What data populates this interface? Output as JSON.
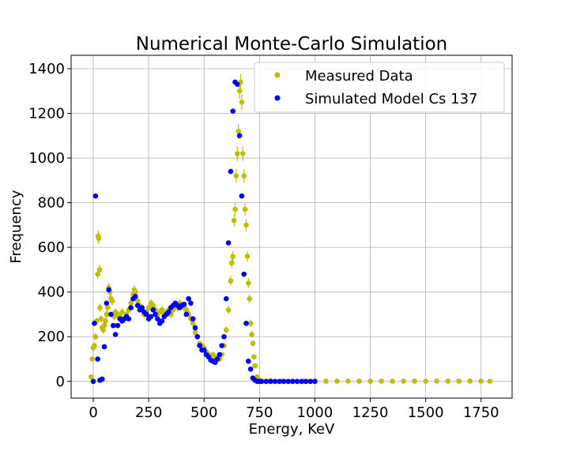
{
  "chart_data": {
    "type": "scatter",
    "title": "Numerical Monte-Carlo Simulation",
    "xlabel": "Energy, KeV",
    "ylabel": "Frequency",
    "xlim": [
      -100,
      1890
    ],
    "ylim": [
      -75,
      1460
    ],
    "xticks": [
      0,
      250,
      500,
      750,
      1000,
      1250,
      1500,
      1750
    ],
    "yticks": [
      0,
      200,
      400,
      600,
      800,
      1000,
      1200,
      1400
    ],
    "grid": true,
    "legend_position": "top-right",
    "series": [
      {
        "name": "Measured Data",
        "color": "#bfbf00",
        "error_bars": true,
        "points": [
          [
            -10,
            20
          ],
          [
            -5,
            100
          ],
          [
            0,
            150
          ],
          [
            5,
            160
          ],
          [
            10,
            200
          ],
          [
            15,
            270
          ],
          [
            20,
            480
          ],
          [
            22,
            650
          ],
          [
            25,
            640
          ],
          [
            28,
            500
          ],
          [
            30,
            330
          ],
          [
            35,
            280
          ],
          [
            40,
            240
          ],
          [
            45,
            230
          ],
          [
            50,
            250
          ],
          [
            55,
            270
          ],
          [
            60,
            300
          ],
          [
            65,
            330
          ],
          [
            70,
            420
          ],
          [
            75,
            400
          ],
          [
            80,
            370
          ],
          [
            85,
            360
          ],
          [
            90,
            300
          ],
          [
            95,
            290
          ],
          [
            100,
            310
          ],
          [
            110,
            300
          ],
          [
            120,
            290
          ],
          [
            130,
            310
          ],
          [
            140,
            280
          ],
          [
            150,
            300
          ],
          [
            160,
            320
          ],
          [
            170,
            350
          ],
          [
            180,
            390
          ],
          [
            185,
            410
          ],
          [
            190,
            400
          ],
          [
            200,
            360
          ],
          [
            210,
            340
          ],
          [
            220,
            320
          ],
          [
            230,
            300
          ],
          [
            240,
            310
          ],
          [
            250,
            330
          ],
          [
            260,
            350
          ],
          [
            270,
            340
          ],
          [
            280,
            320
          ],
          [
            290,
            300
          ],
          [
            300,
            310
          ],
          [
            310,
            320
          ],
          [
            320,
            300
          ],
          [
            330,
            310
          ],
          [
            340,
            320
          ],
          [
            350,
            300
          ],
          [
            360,
            320
          ],
          [
            370,
            340
          ],
          [
            380,
            330
          ],
          [
            390,
            350
          ],
          [
            400,
            340
          ],
          [
            410,
            330
          ],
          [
            420,
            320
          ],
          [
            430,
            300
          ],
          [
            440,
            280
          ],
          [
            450,
            260
          ],
          [
            460,
            220
          ],
          [
            470,
            200
          ],
          [
            480,
            170
          ],
          [
            490,
            160
          ],
          [
            500,
            150
          ],
          [
            510,
            130
          ],
          [
            520,
            120
          ],
          [
            530,
            110
          ],
          [
            540,
            120
          ],
          [
            550,
            100
          ],
          [
            560,
            110
          ],
          [
            570,
            100
          ],
          [
            580,
            120
          ],
          [
            590,
            160
          ],
          [
            600,
            230
          ],
          [
            610,
            320
          ],
          [
            620,
            450
          ],
          [
            625,
            530
          ],
          [
            630,
            560
          ],
          [
            635,
            720
          ],
          [
            640,
            770
          ],
          [
            645,
            920
          ],
          [
            650,
            1020
          ],
          [
            655,
            1120
          ],
          [
            660,
            1300
          ],
          [
            665,
            1340
          ],
          [
            670,
            1250
          ],
          [
            675,
            1020
          ],
          [
            680,
            920
          ],
          [
            685,
            770
          ],
          [
            690,
            700
          ],
          [
            695,
            560
          ],
          [
            700,
            440
          ],
          [
            705,
            370
          ],
          [
            710,
            260
          ],
          [
            715,
            210
          ],
          [
            720,
            170
          ],
          [
            725,
            110
          ],
          [
            730,
            70
          ],
          [
            740,
            20
          ],
          [
            750,
            5
          ],
          [
            800,
            2
          ],
          [
            850,
            1
          ],
          [
            900,
            1
          ],
          [
            950,
            1
          ],
          [
            1000,
            1
          ],
          [
            1050,
            1
          ],
          [
            1100,
            1
          ],
          [
            1150,
            1
          ],
          [
            1200,
            1
          ],
          [
            1250,
            1
          ],
          [
            1300,
            1
          ],
          [
            1350,
            1
          ],
          [
            1400,
            1
          ],
          [
            1450,
            1
          ],
          [
            1500,
            1
          ],
          [
            1550,
            1
          ],
          [
            1600,
            1
          ],
          [
            1650,
            1
          ],
          [
            1700,
            1
          ],
          [
            1750,
            1
          ],
          [
            1790,
            1
          ]
        ]
      },
      {
        "name": "Simulated Model Cs 137",
        "color": "#0000ff",
        "error_bars": false,
        "points": [
          [
            0,
            0
          ],
          [
            5,
            260
          ],
          [
            10,
            830
          ],
          [
            20,
            100
          ],
          [
            30,
            5
          ],
          [
            40,
            10
          ],
          [
            50,
            155
          ],
          [
            60,
            350
          ],
          [
            70,
            410
          ],
          [
            80,
            300
          ],
          [
            90,
            250
          ],
          [
            100,
            210
          ],
          [
            110,
            250
          ],
          [
            120,
            280
          ],
          [
            130,
            270
          ],
          [
            140,
            280
          ],
          [
            150,
            290
          ],
          [
            160,
            280
          ],
          [
            170,
            330
          ],
          [
            180,
            370
          ],
          [
            190,
            380
          ],
          [
            200,
            340
          ],
          [
            210,
            320
          ],
          [
            220,
            330
          ],
          [
            230,
            310
          ],
          [
            240,
            300
          ],
          [
            250,
            280
          ],
          [
            260,
            290
          ],
          [
            270,
            320
          ],
          [
            280,
            300
          ],
          [
            290,
            280
          ],
          [
            300,
            260
          ],
          [
            310,
            270
          ],
          [
            320,
            290
          ],
          [
            330,
            300
          ],
          [
            340,
            310
          ],
          [
            350,
            330
          ],
          [
            360,
            340
          ],
          [
            370,
            350
          ],
          [
            380,
            340
          ],
          [
            390,
            330
          ],
          [
            400,
            340
          ],
          [
            410,
            345
          ],
          [
            420,
            300
          ],
          [
            430,
            370
          ],
          [
            440,
            350
          ],
          [
            450,
            280
          ],
          [
            460,
            240
          ],
          [
            470,
            200
          ],
          [
            480,
            160
          ],
          [
            490,
            140
          ],
          [
            500,
            140
          ],
          [
            510,
            120
          ],
          [
            520,
            110
          ],
          [
            530,
            95
          ],
          [
            540,
            90
          ],
          [
            550,
            85
          ],
          [
            560,
            100
          ],
          [
            570,
            120
          ],
          [
            580,
            160
          ],
          [
            590,
            200
          ],
          [
            600,
            370
          ],
          [
            610,
            620
          ],
          [
            620,
            940
          ],
          [
            630,
            1210
          ],
          [
            640,
            1340
          ],
          [
            650,
            1330
          ],
          [
            660,
            1100
          ],
          [
            670,
            830
          ],
          [
            680,
            480
          ],
          [
            690,
            260
          ],
          [
            700,
            90
          ],
          [
            710,
            55
          ],
          [
            720,
            15
          ],
          [
            730,
            5
          ],
          [
            740,
            0
          ],
          [
            750,
            0
          ],
          [
            760,
            0
          ],
          [
            780,
            0
          ],
          [
            800,
            0
          ],
          [
            820,
            0
          ],
          [
            840,
            0
          ],
          [
            860,
            0
          ],
          [
            880,
            0
          ],
          [
            900,
            0
          ],
          [
            920,
            0
          ],
          [
            940,
            0
          ],
          [
            960,
            0
          ],
          [
            980,
            0
          ],
          [
            1000,
            0
          ]
        ]
      }
    ]
  }
}
